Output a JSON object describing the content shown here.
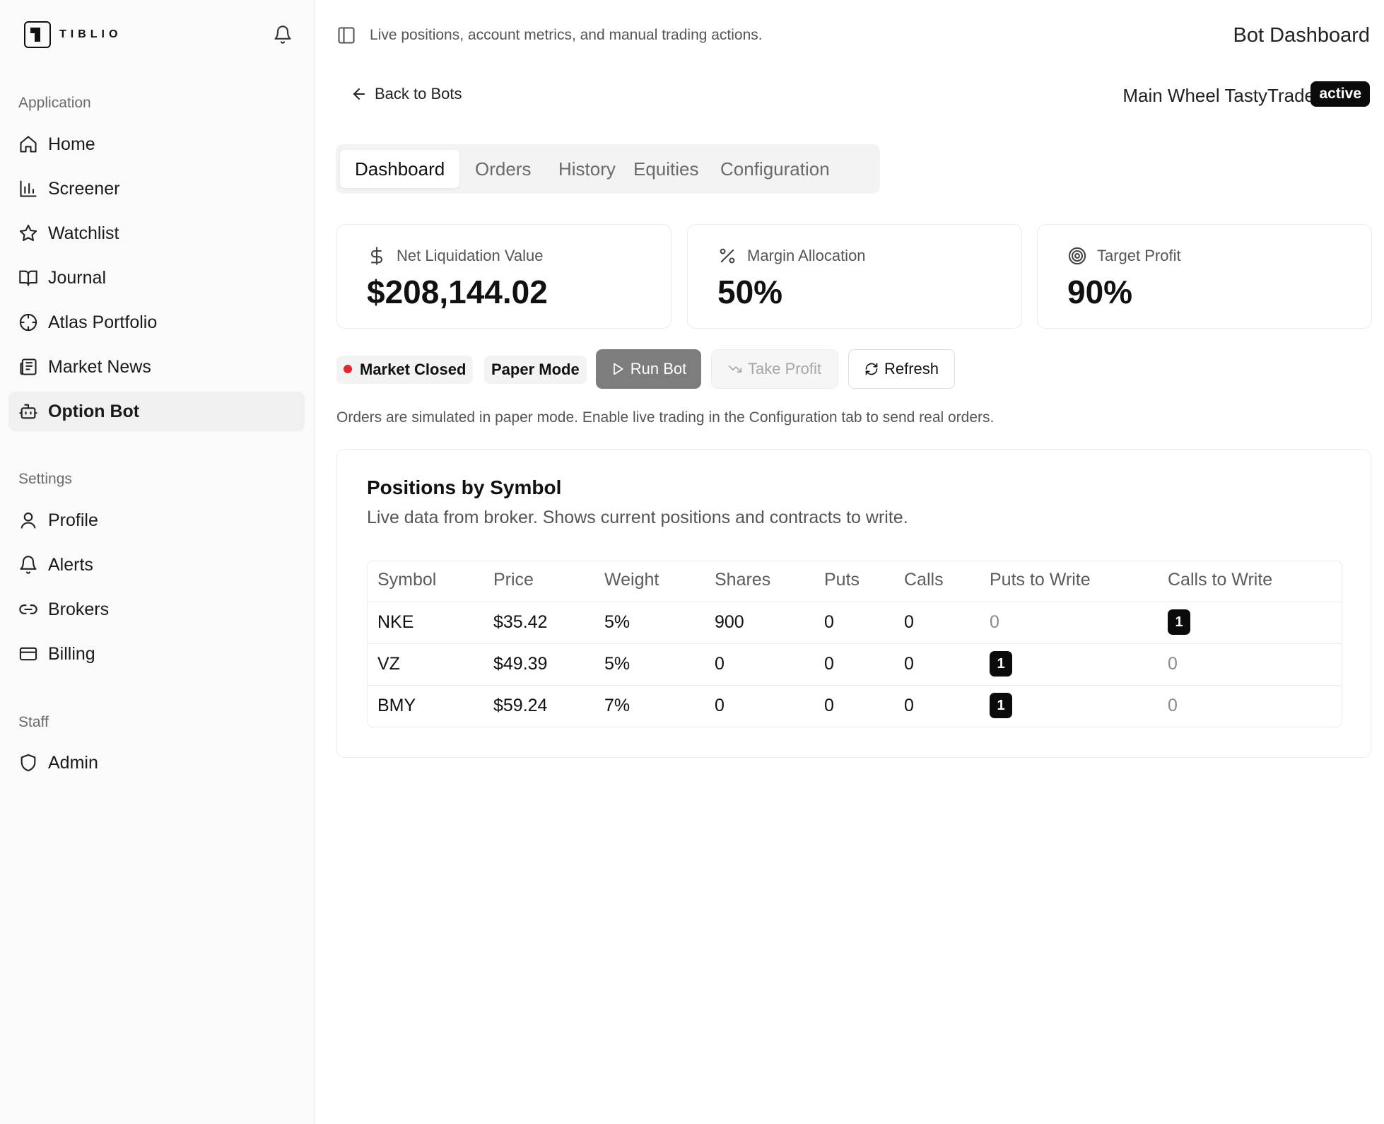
{
  "app": {
    "logo_text": "TIBLIO"
  },
  "sidebar": {
    "sections": [
      {
        "label": "Application",
        "items": [
          {
            "label": "Home",
            "icon": "home-icon"
          },
          {
            "label": "Screener",
            "icon": "bar-chart-icon"
          },
          {
            "label": "Watchlist",
            "icon": "star-icon"
          },
          {
            "label": "Journal",
            "icon": "book-icon"
          },
          {
            "label": "Atlas Portfolio",
            "icon": "crosshair-icon"
          },
          {
            "label": "Market News",
            "icon": "newspaper-icon"
          },
          {
            "label": "Option Bot",
            "icon": "bot-icon",
            "active": true
          }
        ]
      },
      {
        "label": "Settings",
        "items": [
          {
            "label": "Profile",
            "icon": "user-icon"
          },
          {
            "label": "Alerts",
            "icon": "bell-icon"
          },
          {
            "label": "Brokers",
            "icon": "link-icon"
          },
          {
            "label": "Billing",
            "icon": "credit-card-icon"
          }
        ]
      },
      {
        "label": "Staff",
        "items": [
          {
            "label": "Admin",
            "icon": "shield-icon"
          }
        ]
      }
    ]
  },
  "topbar": {
    "description": "Live positions, account metrics, and manual trading actions.",
    "title": "Bot Dashboard"
  },
  "header": {
    "back_label": "Back to Bots",
    "bot_name": "Main Wheel TastyTrade",
    "status": "active"
  },
  "tabs": [
    "Dashboard",
    "Orders",
    "History",
    "Equities",
    "Configuration"
  ],
  "metrics": [
    {
      "label": "Net Liquidation Value",
      "value": "$208,144.02",
      "icon": "dollar-icon"
    },
    {
      "label": "Margin Allocation",
      "value": "50%",
      "icon": "percent-icon"
    },
    {
      "label": "Target Profit",
      "value": "90%",
      "icon": "target-icon"
    }
  ],
  "status": {
    "market": "Market Closed",
    "market_color": "#e5262f",
    "mode": "Paper Mode"
  },
  "actions": {
    "run": "Run Bot",
    "take_profit": "Take Profit",
    "refresh": "Refresh"
  },
  "note": "Orders are simulated in paper mode. Enable live trading in the Configuration tab to send real orders.",
  "positions": {
    "title": "Positions by Symbol",
    "subtitle": "Live data from broker. Shows current positions and contracts to write.",
    "columns": [
      "Symbol",
      "Price",
      "Weight",
      "Shares",
      "Puts",
      "Calls",
      "Puts to Write",
      "Calls to Write"
    ],
    "rows": [
      {
        "symbol": "NKE",
        "price": "$35.42",
        "weight": "5%",
        "shares": "900",
        "puts": "0",
        "calls": "0",
        "puts_to_write": "0",
        "calls_to_write": "1"
      },
      {
        "symbol": "VZ",
        "price": "$49.39",
        "weight": "5%",
        "shares": "0",
        "puts": "0",
        "calls": "0",
        "puts_to_write": "1",
        "calls_to_write": "0"
      },
      {
        "symbol": "BMY",
        "price": "$59.24",
        "weight": "7%",
        "shares": "0",
        "puts": "0",
        "calls": "0",
        "puts_to_write": "1",
        "calls_to_write": "0"
      }
    ]
  }
}
